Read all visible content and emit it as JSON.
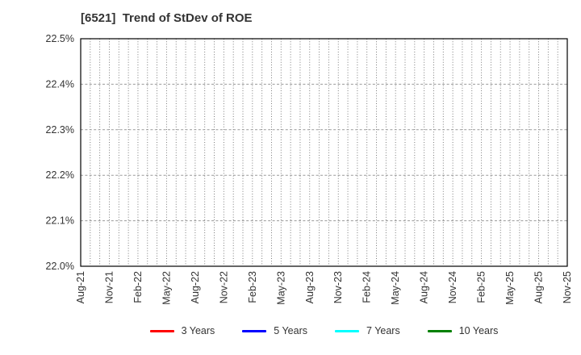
{
  "chart_data": {
    "type": "line",
    "title": "[6521]  Trend of StDev of ROE",
    "xlabel": "",
    "ylabel": "",
    "ylim": [
      22.0,
      22.5
    ],
    "y_tick_labels": [
      "22.0%",
      "22.1%",
      "22.2%",
      "22.3%",
      "22.4%",
      "22.5%"
    ],
    "x_tick_labels": [
      "Aug-21",
      "Nov-21",
      "Feb-22",
      "May-22",
      "Aug-22",
      "Nov-22",
      "Feb-23",
      "May-23",
      "Aug-23",
      "Nov-23",
      "Feb-24",
      "May-24",
      "Aug-24",
      "Nov-24",
      "Feb-25",
      "May-25",
      "Aug-25",
      "Nov-25"
    ],
    "x_label_every_months": 3,
    "grid": "on",
    "legend_position": "bottom-center",
    "series": [
      {
        "name": "3 Years",
        "color": "#ff0000",
        "values": []
      },
      {
        "name": "5 Years",
        "color": "#0000ff",
        "values": []
      },
      {
        "name": "7 Years",
        "color": "#00ffff",
        "values": []
      },
      {
        "name": "10 Years",
        "color": "#008000",
        "values": []
      }
    ]
  },
  "colors": {
    "background": "#ffffff",
    "title_text": "#333333",
    "tick_text": "#333333",
    "plot_border": "#000000",
    "v_grid": "#6e6e6e",
    "h_grid": "#999999"
  }
}
